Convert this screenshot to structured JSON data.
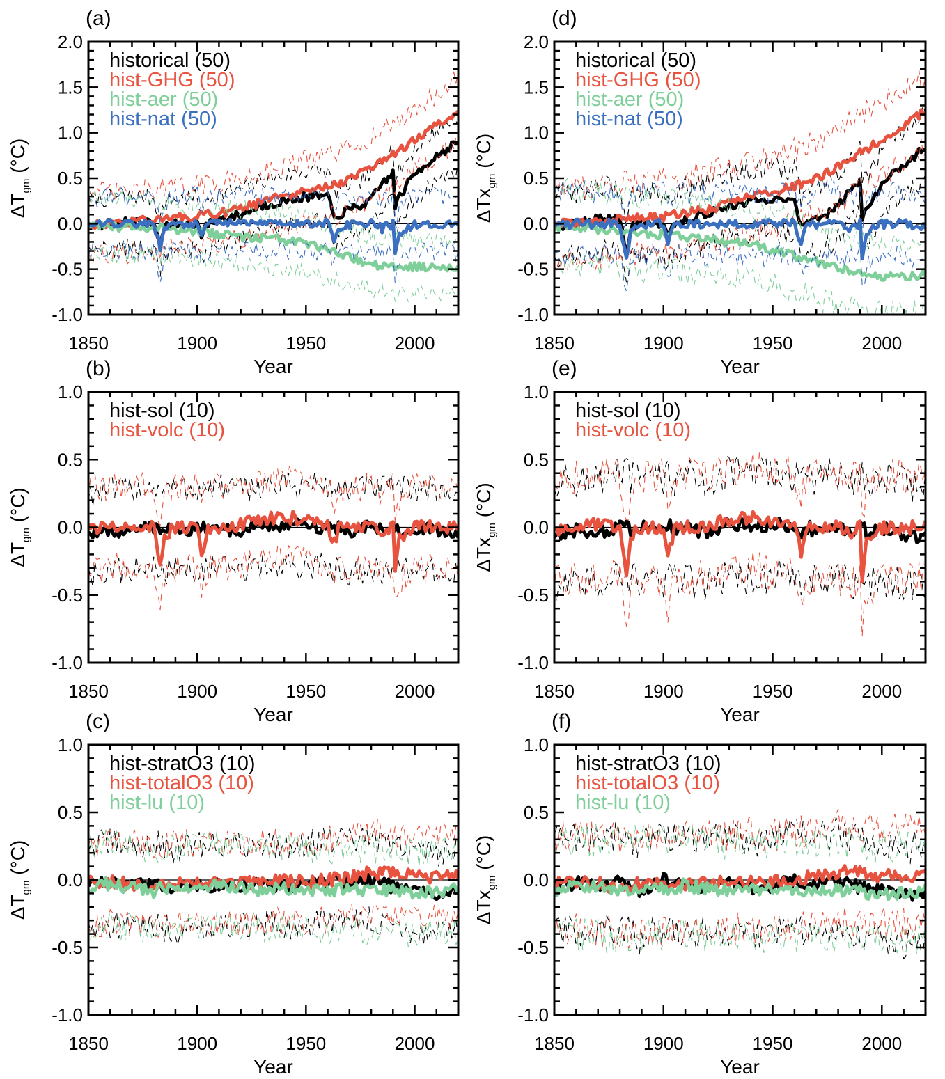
{
  "colors": {
    "black": "#000000",
    "red": "#e8533f",
    "green": "#7fcf9a",
    "blue": "#3b6fc0"
  },
  "chart_data": [
    {
      "panel": "(a)",
      "type": "line",
      "variable": "T",
      "xlabel": "Year",
      "ylabel": "(°C)",
      "xlim": [
        1850,
        2020
      ],
      "ylim": [
        -1.0,
        2.0
      ],
      "xticks": [
        "1850",
        "1900",
        "1950",
        "2000"
      ],
      "yticks": [
        "-1.0",
        "-0.5",
        "0.0",
        "0.5",
        "1.0",
        "1.5",
        "2.0"
      ],
      "zero_line": true,
      "legend_location": "top-left",
      "x": [
        1850,
        1860,
        1870,
        1880,
        1883,
        1885,
        1890,
        1900,
        1902,
        1905,
        1910,
        1920,
        1930,
        1940,
        1950,
        1960,
        1963,
        1965,
        1970,
        1980,
        1985,
        1990,
        1991,
        1993,
        2000,
        2010,
        2020
      ],
      "series": [
        {
          "name": "historical (50)",
          "color": "black",
          "spread": 0.28,
          "values": [
            -0.02,
            0.0,
            0.02,
            0.0,
            -0.22,
            -0.05,
            0.0,
            0.0,
            -0.12,
            0.0,
            0.05,
            0.1,
            0.2,
            0.25,
            0.3,
            0.3,
            0.05,
            0.1,
            0.15,
            0.25,
            0.45,
            0.55,
            0.2,
            0.3,
            0.55,
            0.75,
            0.9
          ]
        },
        {
          "name": "hist-GHG (50)",
          "color": "red",
          "spread": 0.34,
          "values": [
            0.0,
            0.0,
            0.02,
            0.04,
            0.05,
            0.06,
            0.06,
            0.08,
            0.08,
            0.1,
            0.12,
            0.16,
            0.24,
            0.3,
            0.35,
            0.42,
            0.43,
            0.44,
            0.48,
            0.62,
            0.68,
            0.76,
            0.77,
            0.8,
            0.92,
            1.08,
            1.25
          ]
        },
        {
          "name": "hist-aer (50)",
          "color": "green",
          "spread": 0.3,
          "values": [
            -0.02,
            -0.03,
            -0.04,
            -0.05,
            -0.05,
            -0.06,
            -0.07,
            -0.09,
            -0.09,
            -0.1,
            -0.12,
            -0.14,
            -0.16,
            -0.18,
            -0.22,
            -0.3,
            -0.32,
            -0.33,
            -0.37,
            -0.45,
            -0.46,
            -0.48,
            -0.48,
            -0.48,
            -0.48,
            -0.48,
            -0.46
          ]
        },
        {
          "name": "hist-nat (50)",
          "color": "blue",
          "spread": 0.3,
          "values": [
            -0.02,
            0.0,
            0.0,
            0.0,
            -0.25,
            -0.05,
            0.0,
            0.0,
            -0.15,
            0.0,
            0.0,
            0.0,
            0.0,
            0.0,
            0.0,
            0.0,
            -0.15,
            -0.05,
            0.0,
            0.0,
            -0.05,
            0.0,
            -0.3,
            -0.1,
            0.0,
            0.0,
            -0.02
          ]
        }
      ]
    },
    {
      "panel": "(b)",
      "type": "line",
      "variable": "T",
      "xlabel": "Year",
      "ylabel": "(°C)",
      "xlim": [
        1850,
        2020
      ],
      "ylim": [
        -1.0,
        1.0
      ],
      "xticks": [
        "1850",
        "1900",
        "1950",
        "2000"
      ],
      "yticks": [
        "-1.0",
        "-0.5",
        "0.0",
        "0.5",
        "1.0"
      ],
      "zero_line": true,
      "legend_location": "top-left",
      "x": [
        1850,
        1860,
        1870,
        1880,
        1883,
        1885,
        1890,
        1900,
        1902,
        1905,
        1910,
        1920,
        1930,
        1940,
        1950,
        1960,
        1963,
        1965,
        1970,
        1980,
        1985,
        1990,
        1991,
        1993,
        2000,
        2010,
        2020
      ],
      "series": [
        {
          "name": "hist-sol (10)",
          "color": "black",
          "spread": 0.3,
          "values": [
            -0.05,
            -0.03,
            -0.02,
            0.0,
            0.0,
            -0.02,
            0.0,
            -0.02,
            0.0,
            -0.02,
            0.0,
            -0.03,
            0.02,
            0.0,
            0.02,
            0.0,
            -0.02,
            0.0,
            -0.03,
            0.0,
            -0.02,
            0.0,
            0.0,
            -0.02,
            0.0,
            -0.03,
            -0.05
          ]
        },
        {
          "name": "hist-volc (10)",
          "color": "red",
          "spread": 0.3,
          "values": [
            -0.02,
            0.0,
            0.02,
            0.0,
            -0.25,
            -0.05,
            0.0,
            0.0,
            -0.18,
            0.0,
            0.0,
            0.02,
            0.05,
            0.08,
            0.05,
            0.02,
            -0.12,
            -0.02,
            0.0,
            0.0,
            -0.05,
            0.0,
            -0.3,
            -0.1,
            0.0,
            0.0,
            0.0
          ]
        }
      ]
    },
    {
      "panel": "(c)",
      "type": "line",
      "variable": "T",
      "xlabel": "Year",
      "ylabel": "(°C)",
      "xlim": [
        1850,
        2020
      ],
      "ylim": [
        -1.0,
        1.0
      ],
      "xticks": [
        "1850",
        "1900",
        "1950",
        "2000"
      ],
      "yticks": [
        "-1.0",
        "-0.5",
        "0.0",
        "0.5",
        "1.0"
      ],
      "zero_line": true,
      "legend_location": "top-left",
      "x": [
        1850,
        1860,
        1870,
        1880,
        1890,
        1900,
        1910,
        1920,
        1930,
        1940,
        1950,
        1960,
        1970,
        1980,
        1990,
        2000,
        2010,
        2020
      ],
      "series": [
        {
          "name": "hist-stratO3 (10)",
          "color": "black",
          "spread": 0.3,
          "values": [
            -0.05,
            -0.02,
            -0.05,
            -0.03,
            -0.08,
            -0.05,
            -0.03,
            -0.05,
            -0.02,
            -0.05,
            -0.03,
            0.0,
            -0.02,
            0.0,
            -0.05,
            -0.08,
            -0.1,
            -0.05
          ]
        },
        {
          "name": "hist-totalO3 (10)",
          "color": "red",
          "spread": 0.3,
          "values": [
            -0.02,
            -0.02,
            -0.03,
            -0.05,
            -0.03,
            -0.02,
            -0.03,
            -0.03,
            -0.02,
            0.0,
            -0.02,
            0.0,
            0.02,
            0.05,
            0.05,
            0.02,
            0.02,
            0.03
          ]
        },
        {
          "name": "hist-lu (10)",
          "color": "green",
          "spread": 0.3,
          "values": [
            -0.05,
            -0.03,
            -0.05,
            -0.08,
            -0.05,
            -0.05,
            -0.03,
            -0.05,
            -0.08,
            -0.05,
            -0.08,
            -0.08,
            -0.06,
            -0.08,
            -0.08,
            -0.1,
            -0.08,
            -0.08
          ]
        }
      ]
    },
    {
      "panel": "(d)",
      "type": "line",
      "variable": "Tx",
      "xlabel": "Year",
      "ylabel": "(°C)",
      "xlim": [
        1850,
        2020
      ],
      "ylim": [
        -1.0,
        2.0
      ],
      "xticks": [
        "1850",
        "1900",
        "1950",
        "2000"
      ],
      "yticks": [
        "-1.0",
        "-0.5",
        "0.0",
        "0.5",
        "1.0",
        "1.5",
        "2.0"
      ],
      "zero_line": true,
      "legend_location": "top-left",
      "x": [
        1850,
        1860,
        1870,
        1880,
        1883,
        1885,
        1890,
        1900,
        1902,
        1905,
        1910,
        1920,
        1930,
        1940,
        1950,
        1960,
        1963,
        1965,
        1970,
        1980,
        1985,
        1990,
        1991,
        1993,
        2000,
        2010,
        2020
      ],
      "series": [
        {
          "name": "historical (50)",
          "color": "black",
          "spread": 0.35,
          "values": [
            -0.02,
            0.0,
            0.05,
            0.05,
            -0.3,
            -0.05,
            0.02,
            0.0,
            -0.15,
            0.0,
            0.05,
            0.12,
            0.2,
            0.25,
            0.25,
            0.25,
            -0.05,
            0.0,
            0.05,
            0.18,
            0.35,
            0.45,
            0.05,
            0.15,
            0.45,
            0.65,
            0.85
          ]
        },
        {
          "name": "hist-GHG (50)",
          "color": "red",
          "spread": 0.4,
          "values": [
            0.0,
            0.0,
            0.02,
            0.04,
            0.05,
            0.06,
            0.06,
            0.08,
            0.08,
            0.1,
            0.12,
            0.16,
            0.22,
            0.3,
            0.35,
            0.42,
            0.44,
            0.45,
            0.5,
            0.62,
            0.7,
            0.78,
            0.78,
            0.82,
            0.92,
            1.08,
            1.25
          ]
        },
        {
          "name": "hist-aer (50)",
          "color": "green",
          "spread": 0.4,
          "values": [
            -0.03,
            -0.05,
            -0.06,
            -0.07,
            -0.08,
            -0.08,
            -0.1,
            -0.12,
            -0.12,
            -0.13,
            -0.15,
            -0.17,
            -0.2,
            -0.23,
            -0.28,
            -0.35,
            -0.37,
            -0.38,
            -0.42,
            -0.5,
            -0.53,
            -0.56,
            -0.56,
            -0.57,
            -0.58,
            -0.6,
            -0.55
          ]
        },
        {
          "name": "hist-nat (50)",
          "color": "blue",
          "spread": 0.35,
          "values": [
            -0.02,
            0.0,
            0.0,
            0.0,
            -0.4,
            -0.05,
            0.0,
            0.0,
            -0.22,
            0.0,
            0.0,
            0.0,
            0.0,
            0.0,
            0.0,
            0.0,
            -0.2,
            -0.05,
            0.0,
            0.0,
            -0.05,
            0.0,
            -0.38,
            -0.1,
            0.0,
            0.0,
            -0.03
          ]
        }
      ]
    },
    {
      "panel": "(e)",
      "type": "line",
      "variable": "Tx",
      "xlabel": "Year",
      "ylabel": "(°C)",
      "xlim": [
        1850,
        2020
      ],
      "ylim": [
        -1.0,
        1.0
      ],
      "xticks": [
        "1850",
        "1900",
        "1950",
        "2000"
      ],
      "yticks": [
        "-1.0",
        "-0.5",
        "0.0",
        "0.5",
        "1.0"
      ],
      "zero_line": true,
      "legend_location": "top-left",
      "x": [
        1850,
        1860,
        1870,
        1880,
        1883,
        1885,
        1890,
        1900,
        1902,
        1905,
        1910,
        1920,
        1930,
        1940,
        1950,
        1960,
        1963,
        1965,
        1970,
        1980,
        1985,
        1990,
        1991,
        1993,
        2000,
        2010,
        2020
      ],
      "series": [
        {
          "name": "hist-sol (10)",
          "color": "black",
          "spread": 0.38,
          "values": [
            -0.06,
            -0.02,
            -0.04,
            0.0,
            0.02,
            -0.03,
            0.0,
            -0.03,
            0.03,
            -0.02,
            0.0,
            -0.05,
            0.03,
            0.0,
            0.03,
            0.0,
            -0.03,
            0.02,
            -0.04,
            0.02,
            -0.03,
            0.0,
            0.02,
            -0.04,
            0.0,
            -0.05,
            -0.08
          ]
        },
        {
          "name": "hist-volc (10)",
          "color": "red",
          "spread": 0.38,
          "values": [
            -0.03,
            0.0,
            0.02,
            0.0,
            -0.4,
            -0.05,
            0.0,
            0.0,
            -0.25,
            0.0,
            0.0,
            0.02,
            0.05,
            0.08,
            0.05,
            0.02,
            -0.18,
            -0.03,
            0.0,
            0.0,
            -0.05,
            0.0,
            -0.4,
            -0.12,
            0.0,
            0.0,
            0.0
          ]
        }
      ]
    },
    {
      "panel": "(f)",
      "type": "line",
      "variable": "Tx",
      "xlabel": "Year",
      "ylabel": "(°C)",
      "xlim": [
        1850,
        2020
      ],
      "ylim": [
        -1.0,
        1.0
      ],
      "xticks": [
        "1850",
        "1900",
        "1950",
        "2000"
      ],
      "yticks": [
        "-1.0",
        "-0.5",
        "0.0",
        "0.5",
        "1.0"
      ],
      "zero_line": true,
      "legend_location": "top-left",
      "x": [
        1850,
        1860,
        1870,
        1880,
        1890,
        1900,
        1910,
        1920,
        1930,
        1940,
        1950,
        1960,
        1970,
        1980,
        1990,
        2000,
        2010,
        2020
      ],
      "series": [
        {
          "name": "hist-stratO3 (10)",
          "color": "black",
          "spread": 0.35,
          "values": [
            -0.06,
            -0.02,
            -0.05,
            -0.02,
            -0.08,
            0.0,
            -0.05,
            -0.05,
            -0.02,
            -0.06,
            -0.04,
            0.0,
            -0.03,
            0.0,
            -0.06,
            -0.08,
            -0.12,
            -0.08
          ]
        },
        {
          "name": "hist-totalO3 (10)",
          "color": "red",
          "spread": 0.35,
          "values": [
            -0.03,
            -0.02,
            -0.03,
            -0.05,
            -0.03,
            -0.02,
            -0.03,
            -0.03,
            -0.02,
            0.0,
            -0.02,
            0.0,
            0.03,
            0.06,
            0.05,
            0.03,
            0.02,
            0.03
          ]
        },
        {
          "name": "hist-lu (10)",
          "color": "green",
          "spread": 0.35,
          "values": [
            -0.08,
            -0.05,
            -0.06,
            -0.08,
            -0.05,
            -0.06,
            -0.04,
            -0.06,
            -0.08,
            -0.06,
            -0.08,
            -0.08,
            -0.07,
            -0.08,
            -0.09,
            -0.1,
            -0.1,
            -0.08
          ]
        }
      ]
    }
  ]
}
